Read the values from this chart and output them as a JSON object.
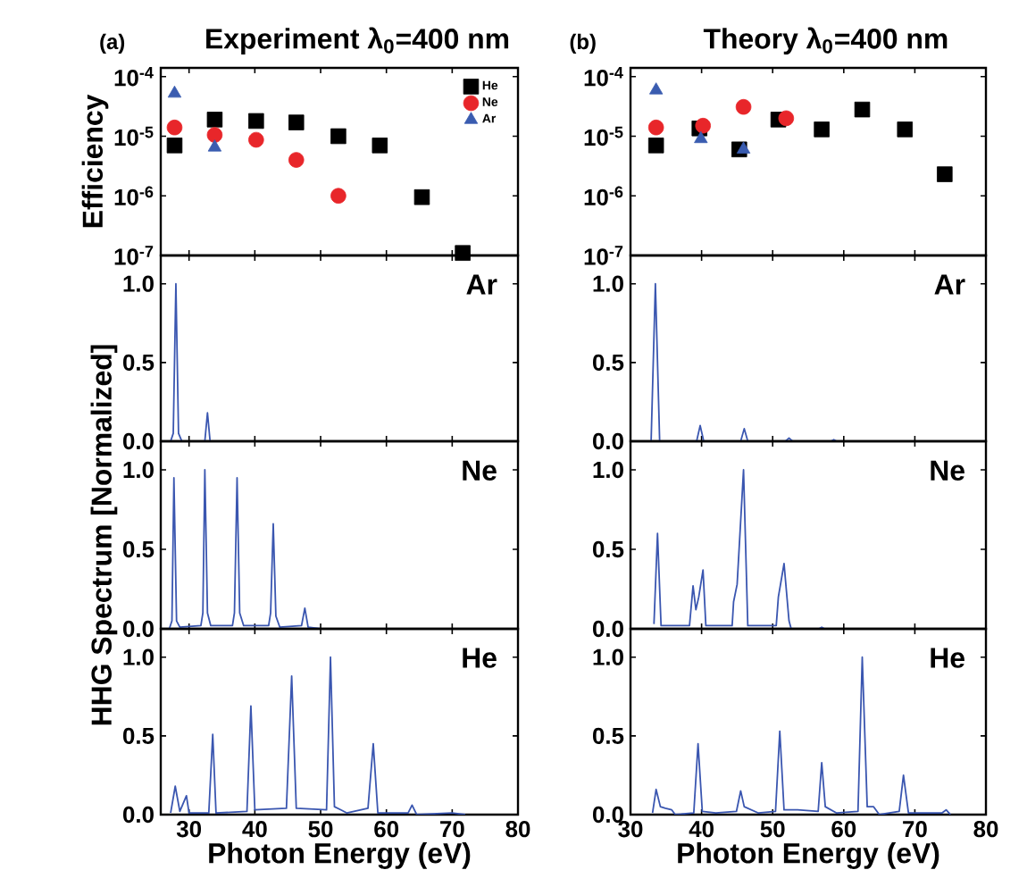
{
  "chart_data": [
    {
      "type": "scatter",
      "title": "Experiment λ$_{0}$=400 nm",
      "annotations": [
        "(a)"
      ],
      "ylabel": "Efficiency",
      "log": "y",
      "xlim": [
        25.7,
        80
      ],
      "xticks": [
        30,
        40,
        50,
        60,
        70,
        80
      ],
      "ylim": [
        1e-07,
        0.00014
      ],
      "yticks": [
        {
          "value": 0.0001,
          "label": "10$^{-4}$"
        },
        {
          "value": 1e-05,
          "label": "10$^{-5}$"
        },
        {
          "value": 1e-06,
          "label": "10$^{-6}$"
        },
        {
          "value": 1e-07,
          "label": "10$^{-7}$"
        }
      ],
      "tick_labels": "y",
      "legend": "top right",
      "series": [
        {
          "name": "He",
          "color": "#000000",
          "marker": "square",
          "x": [
            27.8,
            33.9,
            40.2,
            46.3,
            52.7,
            59.0,
            65.4,
            71.6
          ],
          "values": [
            7e-06,
            1.9e-05,
            1.8e-05,
            1.7e-05,
            1e-05,
            7e-06,
            9.5e-07,
            1.1e-07
          ]
        },
        {
          "name": "Ne",
          "color": "#e8262a",
          "marker": "circle",
          "x": [
            27.8,
            33.9,
            40.2,
            46.3,
            52.7
          ],
          "values": [
            1.4e-05,
            1.05e-05,
            8.7e-06,
            4e-06,
            1e-06
          ]
        },
        {
          "name": "Ar",
          "color": "#3a5cb0",
          "marker": "triangle",
          "x": [
            27.8,
            33.9
          ],
          "values": [
            5.2e-05,
            6.5e-06
          ]
        }
      ]
    },
    {
      "type": "scatter",
      "title": "Theory λ$_{0}$=400 nm",
      "annotations": [
        "(b)"
      ],
      "log": "y",
      "xlim": [
        30,
        80
      ],
      "xticks": [
        30,
        40,
        50,
        60,
        70,
        80
      ],
      "ylim": [
        1e-07,
        0.00014
      ],
      "yticks": [
        {
          "value": 0.0001,
          "label": "10$^{-4}$"
        },
        {
          "value": 1e-05,
          "label": "10$^{-5}$"
        },
        {
          "value": 1e-06,
          "label": "10$^{-6}$"
        },
        {
          "value": 1e-07,
          "label": "10$^{-7}$"
        }
      ],
      "tick_labels": "y",
      "series": [
        {
          "color": "#000000",
          "marker": "square",
          "x": [
            33.6,
            39.7,
            45.3,
            50.8,
            56.9,
            62.6,
            68.6,
            74.2
          ],
          "values": [
            7e-06,
            1.35e-05,
            6e-06,
            1.9e-05,
            1.3e-05,
            2.8e-05,
            1.3e-05,
            2.3e-06
          ]
        },
        {
          "color": "#e8262a",
          "marker": "circle",
          "x": [
            33.6,
            40.2,
            45.9,
            51.9
          ],
          "values": [
            1.4e-05,
            1.5e-05,
            3.1e-05,
            2e-05
          ]
        },
        {
          "color": "#3a5cb0",
          "marker": "triangle",
          "x": [
            33.6,
            39.9,
            45.9
          ],
          "values": [
            5.9e-05,
            9e-06,
            6e-06
          ]
        }
      ]
    },
    {
      "type": "line",
      "annotations": [
        "Ar"
      ],
      "xlim": [
        25.7,
        80
      ],
      "xticks": [
        30,
        40,
        50,
        60,
        70,
        80
      ],
      "ylim": [
        0,
        1.18
      ],
      "yticks": [
        {
          "value": 0,
          "label": "0.0"
        },
        {
          "value": 0.5,
          "label": "0.5"
        },
        {
          "value": 1,
          "label": "1.0"
        }
      ],
      "tick_labels": "y",
      "series": [
        {
          "color": "#3a56b0",
          "x": [
            27.2,
            27.6,
            28.0,
            28.4,
            28.9,
            32.4,
            32.8,
            33.2,
            34.0
          ],
          "values": [
            0,
            0.05,
            1.0,
            0.05,
            0,
            0,
            0.18,
            0,
            0
          ]
        }
      ]
    },
    {
      "type": "line",
      "annotations": [
        "Ar"
      ],
      "xlim": [
        30,
        80
      ],
      "xticks": [
        30,
        40,
        50,
        60,
        70,
        80
      ],
      "ylim": [
        0,
        1.18
      ],
      "yticks": [
        {
          "value": 0,
          "label": "0.0"
        },
        {
          "value": 0.5,
          "label": "0.5"
        },
        {
          "value": 1,
          "label": "1.0"
        }
      ],
      "tick_labels": "y",
      "series": [
        {
          "color": "#3a56b0",
          "x": [
            32.9,
            33.5,
            34.1,
            39.3,
            39.8,
            40.3,
            45.5,
            46.0,
            46.5,
            51.8,
            52.3,
            52.8,
            58.2,
            58.6,
            59.0
          ],
          "values": [
            0,
            1.0,
            0,
            0,
            0.1,
            0,
            0,
            0.08,
            0,
            0,
            0.02,
            0,
            0,
            0.01,
            0
          ]
        }
      ]
    },
    {
      "type": "line",
      "annotations": [
        "Ne"
      ],
      "ylabel": "HHG Spectrum [Normalized]",
      "xlim": [
        25.7,
        80
      ],
      "xticks": [
        30,
        40,
        50,
        60,
        70,
        80
      ],
      "ylim": [
        0,
        1.18
      ],
      "yticks": [
        {
          "value": 0,
          "label": "0.0"
        },
        {
          "value": 0.5,
          "label": "0.5"
        },
        {
          "value": 1,
          "label": "1.0"
        }
      ],
      "tick_labels": "y",
      "series": [
        {
          "color": "#3a56b0",
          "x": [
            27.0,
            27.4,
            27.7,
            28.1,
            28.6,
            31.8,
            32.1,
            32.4,
            32.8,
            33.3,
            36.6,
            36.9,
            37.3,
            37.7,
            38.3,
            42.1,
            42.4,
            42.8,
            43.2,
            43.8,
            47.1,
            47.6,
            48.1,
            50.0
          ],
          "values": [
            0,
            0.05,
            0.95,
            0.05,
            0.01,
            0.02,
            0.1,
            1.0,
            0.1,
            0.02,
            0.02,
            0.1,
            0.95,
            0.1,
            0.02,
            0.02,
            0.1,
            0.66,
            0.08,
            0.01,
            0.02,
            0.13,
            0.01,
            0
          ]
        }
      ]
    },
    {
      "type": "line",
      "annotations": [
        "Ne"
      ],
      "xlim": [
        30,
        80
      ],
      "xticks": [
        30,
        40,
        50,
        60,
        70,
        80
      ],
      "ylim": [
        0,
        1.18
      ],
      "yticks": [
        {
          "value": 0,
          "label": "0.0"
        },
        {
          "value": 0.5,
          "label": "0.5"
        },
        {
          "value": 1,
          "label": "1.0"
        }
      ],
      "tick_labels": "y",
      "series": [
        {
          "color": "#3a56b0",
          "x": [
            33.3,
            33.8,
            34.3,
            38.3,
            38.8,
            39.2,
            39.6,
            40.2,
            40.6,
            44.3,
            44.5,
            45.0,
            45.9,
            46.5,
            50.5,
            50.8,
            51.6,
            52.3,
            52.6,
            56.5,
            56.9,
            57.3
          ],
          "values": [
            0.03,
            0.6,
            0.02,
            0.02,
            0.27,
            0.12,
            0.2,
            0.37,
            0.02,
            0.02,
            0.17,
            0.28,
            1.0,
            0.02,
            0.02,
            0.2,
            0.41,
            0.05,
            0,
            0,
            0.01,
            0
          ]
        }
      ]
    },
    {
      "type": "line",
      "annotations": [
        "He"
      ],
      "xlabel": "Photon Energy (eV)",
      "xlim": [
        25.7,
        80
      ],
      "xticks": [
        30,
        40,
        50,
        60,
        70,
        80
      ],
      "ylim": [
        0,
        1.18
      ],
      "yticks": [
        {
          "value": 0,
          "label": "0.0"
        },
        {
          "value": 0.5,
          "label": "0.5"
        },
        {
          "value": 1,
          "label": "1.0"
        }
      ],
      "series": [
        {
          "color": "#3a56b0",
          "x": [
            27.2,
            27.9,
            28.6,
            29.6,
            30.0,
            33.0,
            33.6,
            34.1,
            38.8,
            39.4,
            40.0,
            44.8,
            45.6,
            46.3,
            50.9,
            51.5,
            52.1,
            53.1,
            54.0,
            57.2,
            58.0,
            58.7,
            63.3,
            63.9,
            64.6,
            70.0,
            72.0
          ],
          "values": [
            0.01,
            0.18,
            0.02,
            0.12,
            0.01,
            0.01,
            0.51,
            0.01,
            0.02,
            0.69,
            0.03,
            0.04,
            0.88,
            0.04,
            0.03,
            1.0,
            0.05,
            0.03,
            0.01,
            0.04,
            0.45,
            0.01,
            0.01,
            0.06,
            0,
            0.01,
            0
          ]
        }
      ]
    },
    {
      "type": "line",
      "annotations": [
        "He"
      ],
      "xlabel": "Photon Energy (eV)",
      "xlim": [
        30,
        80
      ],
      "xticks": [
        30,
        40,
        50,
        60,
        70,
        80
      ],
      "ylim": [
        0,
        1.18
      ],
      "yticks": [
        {
          "value": 0,
          "label": "0.0"
        },
        {
          "value": 0.5,
          "label": "0.5"
        },
        {
          "value": 1,
          "label": "1.0"
        }
      ],
      "series": [
        {
          "color": "#3a56b0",
          "x": [
            33.1,
            33.6,
            34.2,
            34.9,
            35.8,
            36.3,
            38.9,
            39.5,
            40.1,
            42.0,
            44.9,
            45.5,
            46.0,
            48.0,
            50.4,
            51.0,
            51.6,
            53.5,
            56.4,
            56.9,
            57.4,
            59.0,
            62.0,
            62.6,
            63.3,
            64.2,
            65.0,
            67.8,
            68.4,
            69.1,
            73.8,
            74.4,
            75.0
          ],
          "values": [
            0.01,
            0.16,
            0.05,
            0.04,
            0.03,
            0,
            0.01,
            0.45,
            0.02,
            0.01,
            0.02,
            0.15,
            0.05,
            0.01,
            0.02,
            0.53,
            0.03,
            0.03,
            0.02,
            0.33,
            0.05,
            0.01,
            0.02,
            1.0,
            0.05,
            0.05,
            0,
            0.02,
            0.25,
            0.01,
            0.01,
            0.03,
            0
          ]
        }
      ]
    }
  ]
}
